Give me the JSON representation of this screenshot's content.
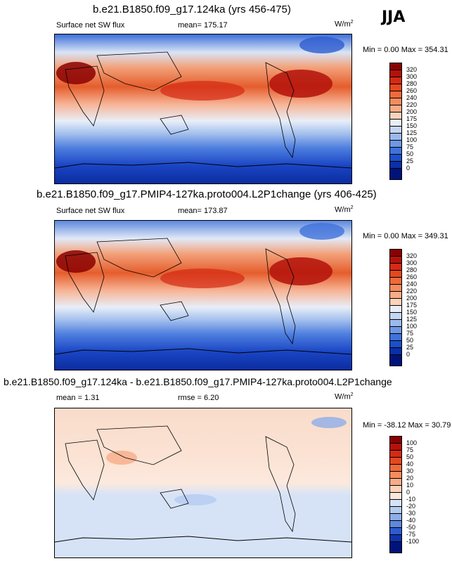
{
  "season": "JJA",
  "panels": [
    {
      "title": "b.e21.B1850.f09_g17.124ka (yrs 456-475)",
      "variable": "Surface net SW flux",
      "stat": "mean=  175.17",
      "units_base": "W/m",
      "units_sup": "2",
      "minmax": "Min =    0.00 Max = 354.31",
      "levels": [
        "320",
        "300",
        "280",
        "260",
        "240",
        "220",
        "200",
        "175",
        "150",
        "125",
        "100",
        "75",
        "50",
        "25",
        "0"
      ],
      "colors": [
        "#8b0000",
        "#b3120b",
        "#d42a14",
        "#e5481f",
        "#ee6a3b",
        "#f48c5f",
        "#f8ac87",
        "#fcd3b9",
        "#e8eef8",
        "#c5d6f2",
        "#9cb9ec",
        "#6f97e4",
        "#4072db",
        "#1b4fcc",
        "#0a2fa8",
        "#00137a"
      ]
    },
    {
      "title": "b.e21.B1850.f09_g17.PMIP4-127ka.proto004.L2P1change (yrs 406-425)",
      "variable": "Surface net SW flux",
      "stat": "mean=  173.87",
      "units_base": "W/m",
      "units_sup": "2",
      "minmax": "Min =    0.00 Max = 349.31",
      "levels": [
        "320",
        "300",
        "280",
        "260",
        "240",
        "220",
        "200",
        "175",
        "150",
        "125",
        "100",
        "75",
        "50",
        "25",
        "0"
      ],
      "colors": [
        "#8b0000",
        "#b3120b",
        "#d42a14",
        "#e5481f",
        "#ee6a3b",
        "#f48c5f",
        "#f8ac87",
        "#fcd3b9",
        "#e8eef8",
        "#c5d6f2",
        "#9cb9ec",
        "#6f97e4",
        "#4072db",
        "#1b4fcc",
        "#0a2fa8",
        "#00137a"
      ]
    },
    {
      "title": "b.e21.B1850.f09_g17.124ka - b.e21.B1850.f09_g17.PMIP4-127ka.proto004.L2P1change",
      "mean": "mean =   1.31",
      "rmse": "rmse =   6.20",
      "units_base": "W/m",
      "units_sup": "2",
      "minmax": "Min = -38.12 Max =  30.79",
      "levels": [
        "100",
        "75",
        "50",
        "40",
        "30",
        "20",
        "10",
        "0",
        "-10",
        "-20",
        "-30",
        "-40",
        "-50",
        "-75",
        "-100"
      ],
      "colors": [
        "#8b0000",
        "#b3120b",
        "#d42a14",
        "#e5481f",
        "#ee6a3b",
        "#f48c5f",
        "#f8ac87",
        "#fcd3b9",
        "#fde7da",
        "#d6e3f7",
        "#b4cbf0",
        "#8eaee8",
        "#5f88de",
        "#2e5ccf",
        "#0e33ae",
        "#00137a"
      ]
    }
  ]
}
